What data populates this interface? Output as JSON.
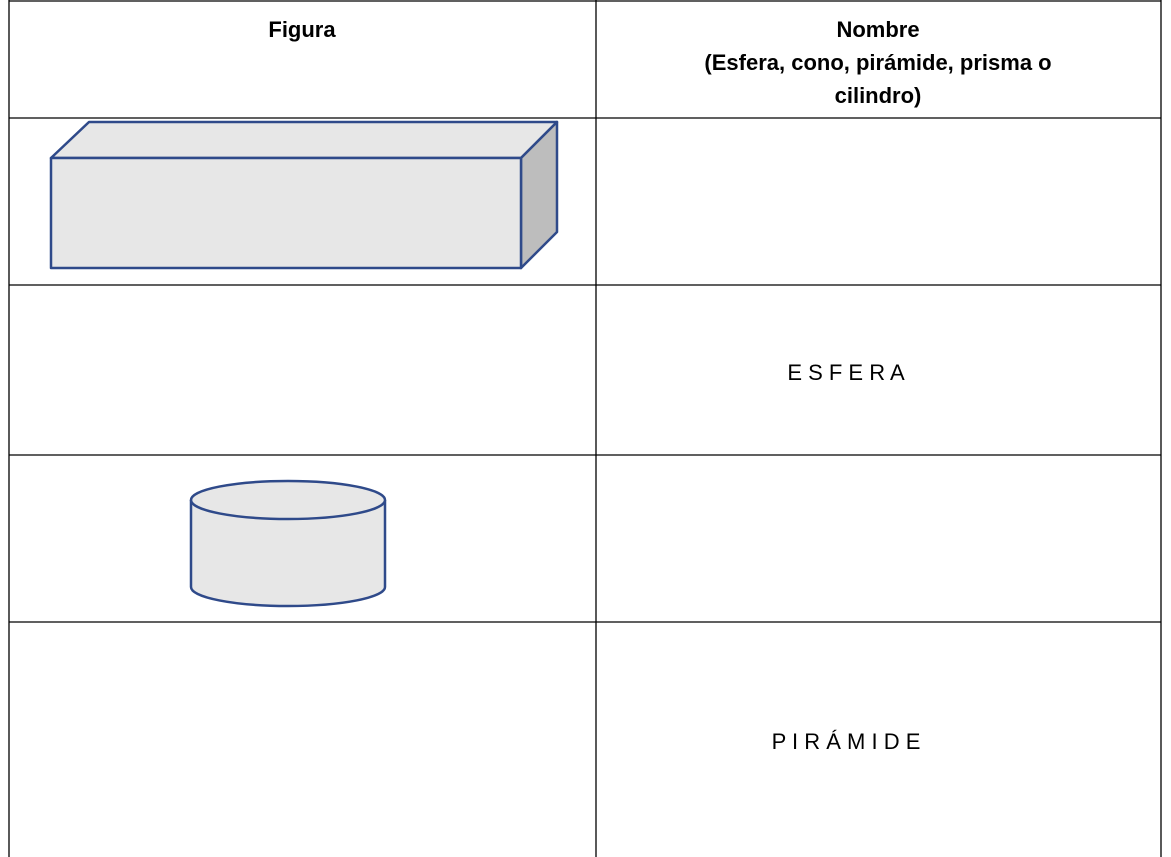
{
  "table": {
    "header": {
      "figure": "Figura",
      "name": [
        "Nombre",
        "(Esfera, cono, pirámide, prisma o",
        "cilindro)"
      ]
    },
    "names": {
      "row2": "E S F E R A",
      "row4": "P I R Á M I D E"
    }
  }
}
